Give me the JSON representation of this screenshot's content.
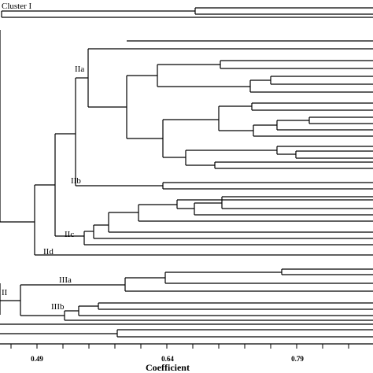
{
  "cluster_labels": {
    "c1": "Cluster I",
    "iia": "IIa",
    "iib": "IIb",
    "iic": "IIc",
    "iid": "IId",
    "ii": "II",
    "iiia": "IIIa",
    "iiib": "IIIb"
  },
  "axis": {
    "title": "Coefficient",
    "ticks": [
      "0.49",
      "0.64",
      "0.79"
    ]
  }
}
